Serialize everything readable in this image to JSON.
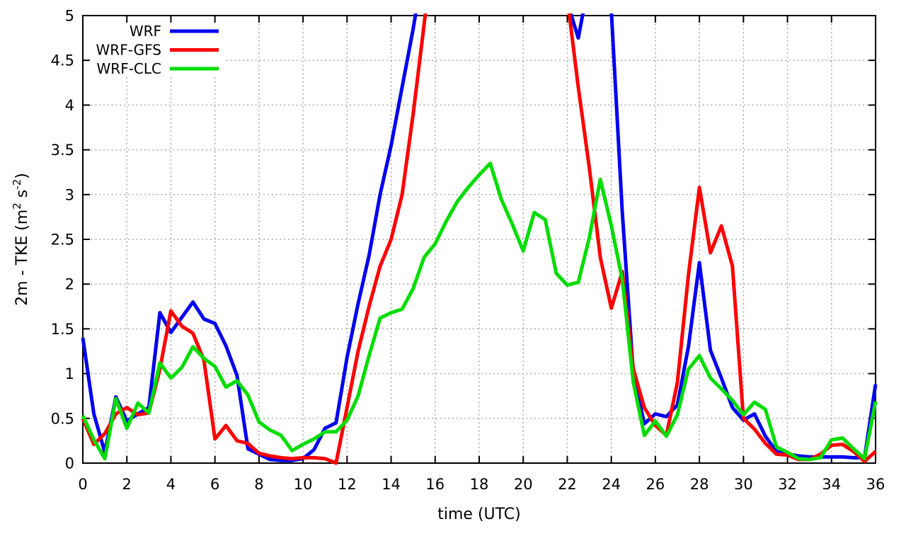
{
  "chart_data": {
    "type": "line",
    "title": "",
    "xlabel": "time (UTC)",
    "ylabel": "2m - TKE (m2 s-2)",
    "ylabel_parts": [
      {
        "t": "2m - TKE (m",
        "sup": false
      },
      {
        "t": "2",
        "sup": true
      },
      {
        "t": " s",
        "sup": false
      },
      {
        "t": "-2",
        "sup": true
      },
      {
        "t": ")",
        "sup": false
      }
    ],
    "xlim": [
      0,
      36
    ],
    "ylim": [
      0,
      5
    ],
    "grid": true,
    "legend_position": "top-left-inside",
    "x_ticklabels": [
      "0",
      "2",
      "4",
      "6",
      "8",
      "10",
      "12",
      "14",
      "16",
      "18",
      "20",
      "22",
      "24",
      "26",
      "28",
      "30",
      "32",
      "34",
      "36"
    ],
    "y_ticklabels": [
      "0",
      "0.5",
      "1",
      "1.5",
      "2",
      "2.5",
      "3",
      "3.5",
      "4",
      "4.5",
      "5"
    ],
    "x_start": 0,
    "x_step": 0.5,
    "off_scale_value_means": "curve above plot top (>5), clipped like source figure",
    "series": [
      {
        "name": "WRF",
        "color": "#0000ee",
        "values": [
          1.4,
          0.55,
          0.12,
          0.74,
          0.47,
          0.55,
          0.62,
          1.68,
          1.46,
          1.63,
          1.8,
          1.61,
          1.56,
          1.31,
          0.98,
          0.16,
          0.1,
          0.04,
          0.03,
          0.03,
          0.05,
          0.15,
          0.39,
          0.45,
          1.18,
          1.78,
          2.32,
          3.0,
          3.55,
          4.2,
          4.85,
          5.6,
          6.5,
          6.5,
          6.5,
          6.5,
          6.5,
          6.5,
          6.5,
          6.5,
          6.5,
          6.5,
          6.5,
          6.5,
          5.15,
          4.75,
          5.4,
          6.0,
          5.05,
          2.8,
          1.0,
          0.44,
          0.55,
          0.52,
          0.65,
          1.3,
          2.24,
          1.26,
          0.95,
          0.62,
          0.48,
          0.55,
          0.3,
          0.13,
          0.1,
          0.08,
          0.07,
          0.07,
          0.07,
          0.07,
          0.06,
          0.06,
          0.88
        ]
      },
      {
        "name": "WRF-GFS",
        "color": "#ff0000",
        "values": [
          0.5,
          0.21,
          0.33,
          0.55,
          0.62,
          0.54,
          0.56,
          1.05,
          1.7,
          1.53,
          1.45,
          1.15,
          0.27,
          0.42,
          0.25,
          0.22,
          0.11,
          0.08,
          0.06,
          0.05,
          0.06,
          0.06,
          0.05,
          0.0,
          0.62,
          1.25,
          1.75,
          2.2,
          2.5,
          3.0,
          3.9,
          4.9,
          6.0,
          6.5,
          6.5,
          6.5,
          6.5,
          6.5,
          6.5,
          6.5,
          6.5,
          6.5,
          6.5,
          6.5,
          5.2,
          4.2,
          3.3,
          2.3,
          1.73,
          2.14,
          1.05,
          0.62,
          0.42,
          0.31,
          0.9,
          2.1,
          3.08,
          2.35,
          2.65,
          2.2,
          0.5,
          0.38,
          0.22,
          0.1,
          0.09,
          0.04,
          0.04,
          0.1,
          0.2,
          0.21,
          0.13,
          0.02,
          0.13
        ]
      },
      {
        "name": "WRF-CLC",
        "color": "#00dc00",
        "values": [
          0.53,
          0.26,
          0.05,
          0.72,
          0.39,
          0.67,
          0.56,
          1.12,
          0.95,
          1.07,
          1.3,
          1.17,
          1.08,
          0.85,
          0.92,
          0.76,
          0.46,
          0.37,
          0.31,
          0.14,
          0.21,
          0.27,
          0.35,
          0.35,
          0.48,
          0.75,
          1.2,
          1.62,
          1.68,
          1.72,
          1.95,
          2.3,
          2.45,
          2.7,
          2.92,
          3.08,
          3.22,
          3.35,
          2.95,
          2.67,
          2.37,
          2.8,
          2.72,
          2.12,
          1.99,
          2.02,
          2.52,
          3.17,
          2.65,
          2.05,
          0.9,
          0.31,
          0.47,
          0.3,
          0.54,
          1.05,
          1.2,
          0.95,
          0.83,
          0.7,
          0.54,
          0.68,
          0.6,
          0.18,
          0.12,
          0.05,
          0.04,
          0.06,
          0.26,
          0.28,
          0.16,
          0.05,
          0.69
        ]
      }
    ]
  },
  "style": {
    "background": "#ffffff",
    "border_color": "#000000",
    "grid_color": "#a8a8a8",
    "line_width": 5
  }
}
